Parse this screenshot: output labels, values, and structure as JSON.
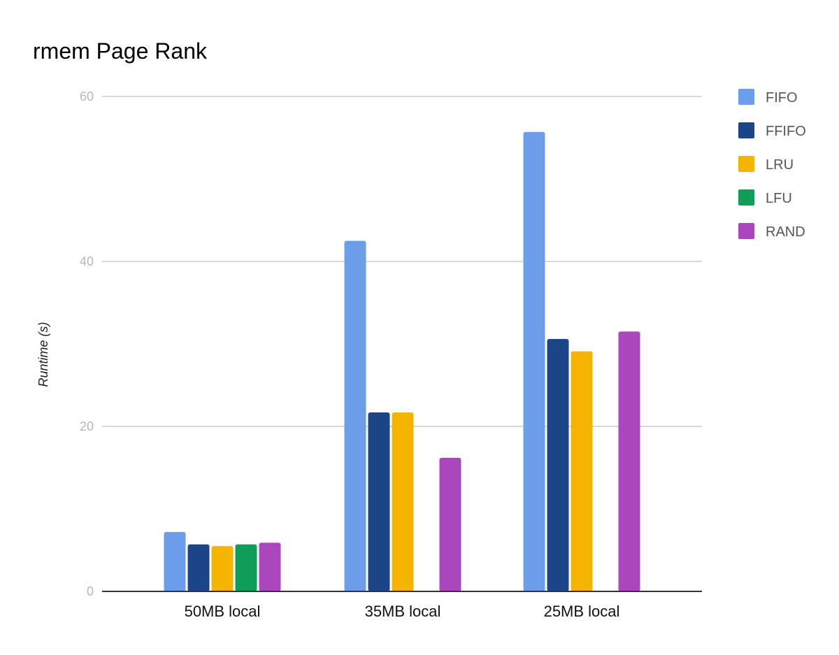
{
  "chart_data": {
    "type": "bar",
    "title": "rmem Page Rank",
    "ylabel": "Runtime (s)",
    "xlabel": "",
    "categories": [
      "50MB local",
      "35MB local",
      "25MB local"
    ],
    "series": [
      {
        "name": "FIFO",
        "color": "#6d9eeb",
        "values": [
          7.2,
          42.5,
          55.7
        ]
      },
      {
        "name": "FFIFO",
        "color": "#1c4587",
        "values": [
          5.7,
          21.7,
          30.6
        ]
      },
      {
        "name": "LRU",
        "color": "#f4b400",
        "values": [
          5.5,
          21.7,
          29.1
        ]
      },
      {
        "name": "LFU",
        "color": "#0f9d58",
        "values": [
          5.7,
          null,
          null
        ]
      },
      {
        "name": "RAND",
        "color": "#ab47bc",
        "values": [
          5.9,
          16.2,
          31.5
        ]
      }
    ],
    "ylim": [
      0,
      60
    ],
    "yticks": [
      "0",
      "20",
      "40",
      "60"
    ],
    "grid": true,
    "legend_position": "right"
  }
}
